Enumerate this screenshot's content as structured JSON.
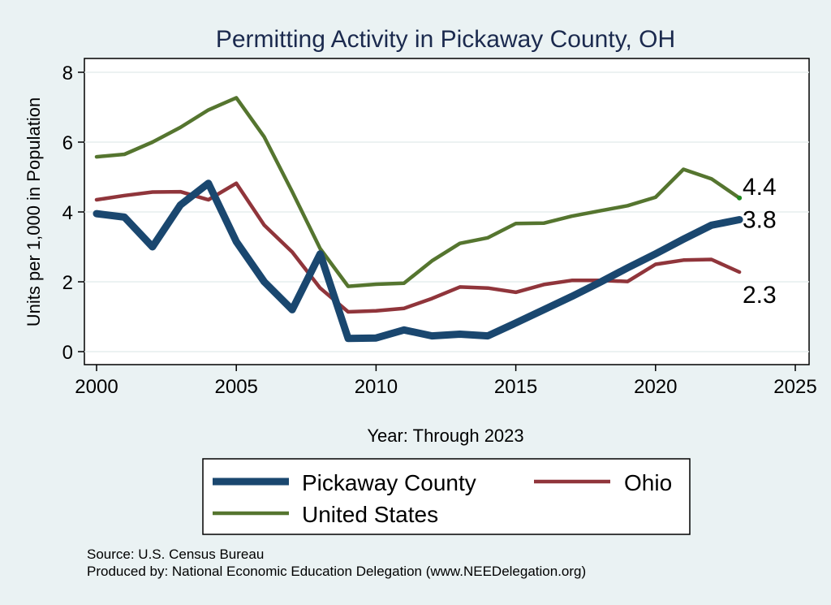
{
  "chart_data": {
    "type": "line",
    "title": "Permitting Activity in Pickaway County, OH",
    "xlabel": "Year: Through 2023",
    "ylabel": "Units per 1,000 in Population",
    "xlim": [
      2000,
      2025
    ],
    "ylim": [
      0,
      8
    ],
    "xticks": [
      2000,
      2005,
      2010,
      2015,
      2020,
      2025
    ],
    "yticks": [
      0,
      2,
      4,
      6,
      8
    ],
    "grid": "horizontal",
    "x": [
      2000,
      2001,
      2002,
      2003,
      2004,
      2005,
      2006,
      2007,
      2008,
      2009,
      2010,
      2011,
      2012,
      2013,
      2014,
      2015,
      2016,
      2017,
      2018,
      2019,
      2020,
      2021,
      2022,
      2023
    ],
    "series": [
      {
        "name": "Pickaway County",
        "color": "#1a476f",
        "values": [
          3.95,
          3.85,
          3.0,
          4.2,
          4.82,
          3.15,
          2.0,
          1.2,
          2.8,
          0.38,
          0.39,
          0.62,
          0.45,
          0.5,
          0.45,
          0.82,
          1.2,
          1.58,
          1.98,
          2.4,
          2.8,
          3.22,
          3.62,
          3.78
        ],
        "end_label": "3.8"
      },
      {
        "name": "Ohio",
        "color": "#90353b",
        "values": [
          4.35,
          4.47,
          4.57,
          4.58,
          4.35,
          4.82,
          3.62,
          2.85,
          1.82,
          1.14,
          1.17,
          1.24,
          1.52,
          1.85,
          1.82,
          1.7,
          1.92,
          2.04,
          2.04,
          2.01,
          2.5,
          2.62,
          2.64,
          2.28
        ],
        "end_label": "2.3"
      },
      {
        "name": "United States",
        "color": "#55752f",
        "values": [
          5.58,
          5.65,
          6.0,
          6.42,
          6.92,
          7.27,
          6.15,
          4.58,
          2.95,
          1.87,
          1.93,
          1.96,
          2.6,
          3.1,
          3.26,
          3.67,
          3.68,
          3.88,
          4.03,
          4.18,
          4.42,
          5.22,
          4.95,
          4.4
        ],
        "end_label": "4.4"
      }
    ],
    "legend": {
      "placement": "bottom",
      "entries": [
        "Pickaway County",
        "Ohio",
        "United States"
      ]
    },
    "notes": [
      "Source: U.S. Census Bureau",
      "Produced by: National Economic Education Delegation (www.NEEDelegation.org)"
    ]
  }
}
